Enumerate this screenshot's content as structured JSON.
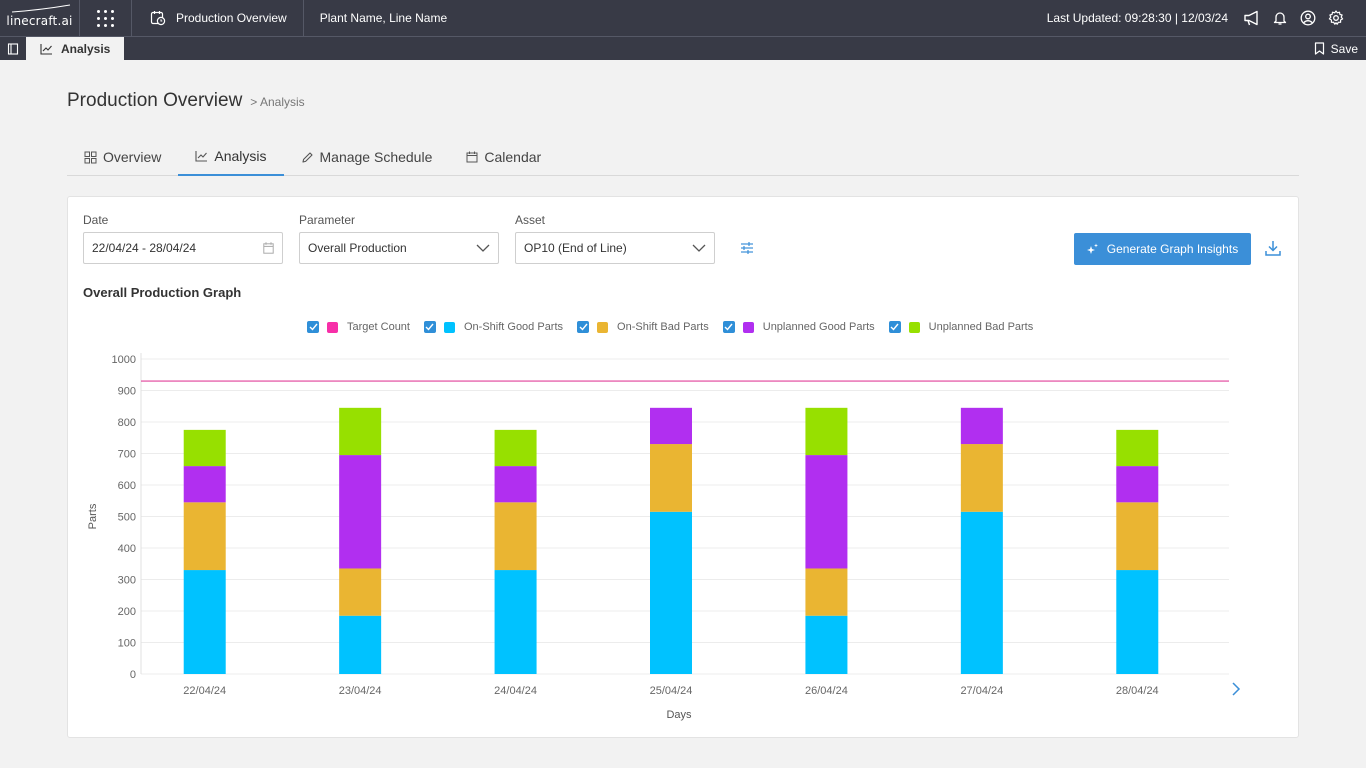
{
  "topbar": {
    "logo_text": "linecraft.ai",
    "app_title": "Production Overview",
    "plant": "Plant Name, Line Name",
    "last_updated": "Last Updated: 09:28:30 | 12/03/24"
  },
  "subbar": {
    "tab_label": "Analysis",
    "save_label": "Save"
  },
  "page": {
    "title": "Production Overview",
    "breadcrumb": "> Analysis"
  },
  "tabs": [
    {
      "label": "Overview",
      "active": false
    },
    {
      "label": "Analysis",
      "active": true
    },
    {
      "label": "Manage Schedule",
      "active": false
    },
    {
      "label": "Calendar",
      "active": false
    }
  ],
  "filters": {
    "date_label": "Date",
    "date_value": "22/04/24 - 28/04/24",
    "parameter_label": "Parameter",
    "parameter_value": "Overall Production",
    "asset_label": "Asset",
    "asset_value": "OP10 (End of Line)",
    "generate_label": "Generate Graph Insights"
  },
  "graph_title": "Overall Production Graph",
  "legend": [
    {
      "label": "Target Count",
      "color": "#f72fa8",
      "checked": true
    },
    {
      "label": "On-Shift Good Parts",
      "color": "#00c2ff",
      "checked": true
    },
    {
      "label": "On-Shift Bad Parts",
      "color": "#eab532",
      "checked": true
    },
    {
      "label": "Unplanned Good Parts",
      "color": "#b12ff0",
      "checked": true
    },
    {
      "label": "Unplanned Bad Parts",
      "color": "#97e000",
      "checked": true
    }
  ],
  "chart_data": {
    "type": "bar",
    "stacked": true,
    "categories": [
      "22/04/24",
      "23/04/24",
      "24/04/24",
      "25/04/24",
      "26/04/24",
      "27/04/24",
      "28/04/24"
    ],
    "series": [
      {
        "name": "On-Shift Good Parts",
        "color": "#00c2ff",
        "values": [
          330,
          185,
          330,
          515,
          185,
          515,
          330
        ]
      },
      {
        "name": "On-Shift Bad Parts",
        "color": "#eab532",
        "values": [
          215,
          150,
          215,
          215,
          150,
          215,
          215
        ]
      },
      {
        "name": "Unplanned Good Parts",
        "color": "#b12ff0",
        "values": [
          115,
          360,
          115,
          115,
          360,
          115,
          115
        ]
      },
      {
        "name": "Unplanned Bad Parts",
        "color": "#97e000",
        "values": [
          115,
          150,
          115,
          0,
          150,
          0,
          115
        ]
      }
    ],
    "target": {
      "name": "Target Count",
      "color": "#e0429a",
      "value": 930
    },
    "xlabel": "Days",
    "ylabel": "Parts",
    "ylim": [
      0,
      1000
    ],
    "yticks": [
      0,
      100,
      200,
      300,
      400,
      500,
      600,
      700,
      800,
      900,
      1000
    ],
    "grid": true
  }
}
